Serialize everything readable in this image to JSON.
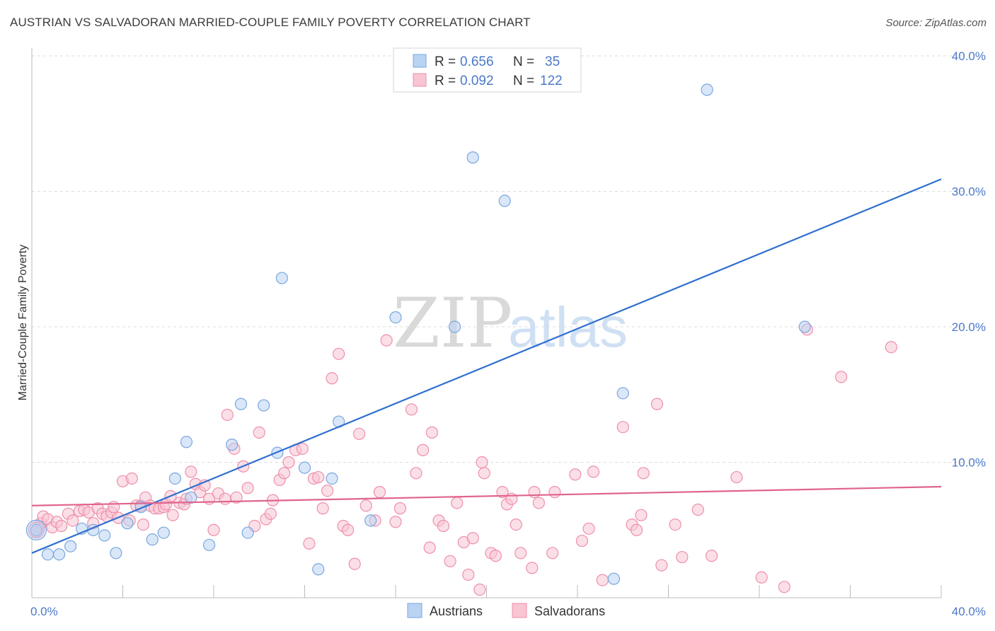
{
  "title": "AUSTRIAN VS SALVADORAN MARRIED-COUPLE FAMILY POVERTY CORRELATION CHART",
  "source": "Source: ZipAtlas.com",
  "watermark": {
    "zip": "ZIP",
    "atlas": "atlas"
  },
  "colors": {
    "austrians_fill": "#b9d3f3",
    "austrians_stroke": "#7aa6e0",
    "austrians_line": "#2f6fcf",
    "salvadorans_fill": "#f8c5d3",
    "salvadorans_stroke": "#ee8fab",
    "salvadorans_line": "#e0648e",
    "axis_text": "#4a78c8",
    "grid": "#dddddd"
  },
  "legend": {
    "rows": [
      {
        "r_label": "R = ",
        "r_value": "0.656",
        "n_label": "N = ",
        "n_value": "35"
      },
      {
        "r_label": "R = ",
        "r_value": "0.092",
        "n_label": "N = ",
        "n_value": "122"
      }
    ]
  },
  "bottom_legend": {
    "austrians": "Austrians",
    "salvadorans": "Salvadorans"
  },
  "chart_data": {
    "type": "scatter",
    "title": "AUSTRIAN VS SALVADORAN MARRIED-COUPLE FAMILY POVERTY CORRELATION CHART",
    "xlabel": "",
    "ylabel": "Married-Couple Family Poverty",
    "xlim": [
      0,
      40
    ],
    "ylim": [
      0,
      40
    ],
    "x_tick_labels": [
      "0.0%",
      "40.0%"
    ],
    "y_tick_values": [
      10,
      20,
      30,
      40
    ],
    "y_tick_labels": [
      "10.0%",
      "20.0%",
      "30.0%",
      "40.0%"
    ],
    "grid": true,
    "series": [
      {
        "name": "Austrians",
        "R": 0.656,
        "N": 35,
        "trend": {
          "x": [
            0,
            40
          ],
          "y": [
            3.3,
            30.9
          ]
        },
        "points": [
          [
            0.2,
            5.0
          ],
          [
            0.7,
            3.2
          ],
          [
            1.2,
            3.2
          ],
          [
            1.7,
            3.8
          ],
          [
            2.2,
            5.1
          ],
          [
            2.7,
            5.0
          ],
          [
            3.2,
            4.6
          ],
          [
            3.7,
            3.3
          ],
          [
            4.2,
            5.5
          ],
          [
            4.8,
            6.7
          ],
          [
            5.3,
            4.3
          ],
          [
            5.8,
            4.8
          ],
          [
            6.3,
            8.8
          ],
          [
            6.8,
            11.5
          ],
          [
            7.0,
            7.4
          ],
          [
            7.8,
            3.9
          ],
          [
            8.8,
            11.3
          ],
          [
            9.2,
            14.3
          ],
          [
            9.5,
            4.8
          ],
          [
            10.2,
            14.2
          ],
          [
            10.8,
            10.7
          ],
          [
            11.0,
            23.6
          ],
          [
            12.0,
            9.6
          ],
          [
            12.6,
            2.1
          ],
          [
            13.2,
            8.8
          ],
          [
            13.5,
            13.0
          ],
          [
            14.9,
            5.7
          ],
          [
            16.0,
            20.7
          ],
          [
            18.6,
            20.0
          ],
          [
            19.4,
            32.5
          ],
          [
            20.8,
            29.3
          ],
          [
            25.6,
            1.4
          ],
          [
            26.0,
            15.1
          ],
          [
            29.7,
            37.5
          ],
          [
            34.0,
            20.0
          ]
        ]
      },
      {
        "name": "Salvadorans",
        "R": 0.092,
        "N": 122,
        "trend": {
          "x": [
            0,
            40
          ],
          "y": [
            6.8,
            8.2
          ]
        },
        "points": [
          [
            0.2,
            4.9
          ],
          [
            0.3,
            5.2
          ],
          [
            0.4,
            5.5
          ],
          [
            0.5,
            6.0
          ],
          [
            0.7,
            5.8
          ],
          [
            0.9,
            5.2
          ],
          [
            1.1,
            5.6
          ],
          [
            1.3,
            5.3
          ],
          [
            1.6,
            6.2
          ],
          [
            1.8,
            5.7
          ],
          [
            2.1,
            6.4
          ],
          [
            2.3,
            6.5
          ],
          [
            2.5,
            6.3
          ],
          [
            2.7,
            5.5
          ],
          [
            2.9,
            6.6
          ],
          [
            3.1,
            6.2
          ],
          [
            3.3,
            6.0
          ],
          [
            3.5,
            6.3
          ],
          [
            3.6,
            6.7
          ],
          [
            3.8,
            5.9
          ],
          [
            4.0,
            8.6
          ],
          [
            4.3,
            5.7
          ],
          [
            4.4,
            8.8
          ],
          [
            4.6,
            6.8
          ],
          [
            4.8,
            6.8
          ],
          [
            4.9,
            5.4
          ],
          [
            5.0,
            7.4
          ],
          [
            5.2,
            6.8
          ],
          [
            5.4,
            6.6
          ],
          [
            5.6,
            6.6
          ],
          [
            5.8,
            6.7
          ],
          [
            5.9,
            6.9
          ],
          [
            6.1,
            7.5
          ],
          [
            6.2,
            6.1
          ],
          [
            6.5,
            7.0
          ],
          [
            6.7,
            6.9
          ],
          [
            6.8,
            7.3
          ],
          [
            7.0,
            9.3
          ],
          [
            7.2,
            8.4
          ],
          [
            7.4,
            7.8
          ],
          [
            7.6,
            8.3
          ],
          [
            7.8,
            7.3
          ],
          [
            8.0,
            5.0
          ],
          [
            8.2,
            7.7
          ],
          [
            8.5,
            7.3
          ],
          [
            8.6,
            13.5
          ],
          [
            8.9,
            11.0
          ],
          [
            9.0,
            7.4
          ],
          [
            9.3,
            9.7
          ],
          [
            9.5,
            8.1
          ],
          [
            9.8,
            5.3
          ],
          [
            10.0,
            12.2
          ],
          [
            10.3,
            5.8
          ],
          [
            10.5,
            6.2
          ],
          [
            10.6,
            7.2
          ],
          [
            10.9,
            8.7
          ],
          [
            11.1,
            9.2
          ],
          [
            11.3,
            10.0
          ],
          [
            11.6,
            10.9
          ],
          [
            11.9,
            11.0
          ],
          [
            12.2,
            4.0
          ],
          [
            12.4,
            8.8
          ],
          [
            12.6,
            8.9
          ],
          [
            12.8,
            6.6
          ],
          [
            13.0,
            7.9
          ],
          [
            13.2,
            16.2
          ],
          [
            13.5,
            18.0
          ],
          [
            13.7,
            5.3
          ],
          [
            13.9,
            5.0
          ],
          [
            14.2,
            2.5
          ],
          [
            14.4,
            12.1
          ],
          [
            14.7,
            6.8
          ],
          [
            15.1,
            5.7
          ],
          [
            15.3,
            7.8
          ],
          [
            15.6,
            19.0
          ],
          [
            16.0,
            5.6
          ],
          [
            16.2,
            6.6
          ],
          [
            16.7,
            13.9
          ],
          [
            16.9,
            9.2
          ],
          [
            17.2,
            10.9
          ],
          [
            17.5,
            3.7
          ],
          [
            17.6,
            12.2
          ],
          [
            17.9,
            5.7
          ],
          [
            18.1,
            5.3
          ],
          [
            18.4,
            2.7
          ],
          [
            18.7,
            7.0
          ],
          [
            19.0,
            4.1
          ],
          [
            19.2,
            1.7
          ],
          [
            19.4,
            4.4
          ],
          [
            19.7,
            0.6
          ],
          [
            19.8,
            10.0
          ],
          [
            19.9,
            9.2
          ],
          [
            20.2,
            3.3
          ],
          [
            20.4,
            3.1
          ],
          [
            20.7,
            7.8
          ],
          [
            20.9,
            6.9
          ],
          [
            21.1,
            7.3
          ],
          [
            21.3,
            5.4
          ],
          [
            21.5,
            3.3
          ],
          [
            22.0,
            2.2
          ],
          [
            22.1,
            7.8
          ],
          [
            22.3,
            7.0
          ],
          [
            22.9,
            3.3
          ],
          [
            23.0,
            7.8
          ],
          [
            23.9,
            9.1
          ],
          [
            24.2,
            4.2
          ],
          [
            24.5,
            5.1
          ],
          [
            24.7,
            9.3
          ],
          [
            25.1,
            1.3
          ],
          [
            26.0,
            12.6
          ],
          [
            26.4,
            5.4
          ],
          [
            26.6,
            5.0
          ],
          [
            26.8,
            6.1
          ],
          [
            26.9,
            9.2
          ],
          [
            27.5,
            14.3
          ],
          [
            27.7,
            2.4
          ],
          [
            28.3,
            5.4
          ],
          [
            28.6,
            3.0
          ],
          [
            29.3,
            6.5
          ],
          [
            29.9,
            3.1
          ],
          [
            31.0,
            8.9
          ],
          [
            32.1,
            1.5
          ],
          [
            33.1,
            0.8
          ],
          [
            34.1,
            19.8
          ],
          [
            35.6,
            16.3
          ],
          [
            37.8,
            18.5
          ]
        ]
      }
    ]
  }
}
